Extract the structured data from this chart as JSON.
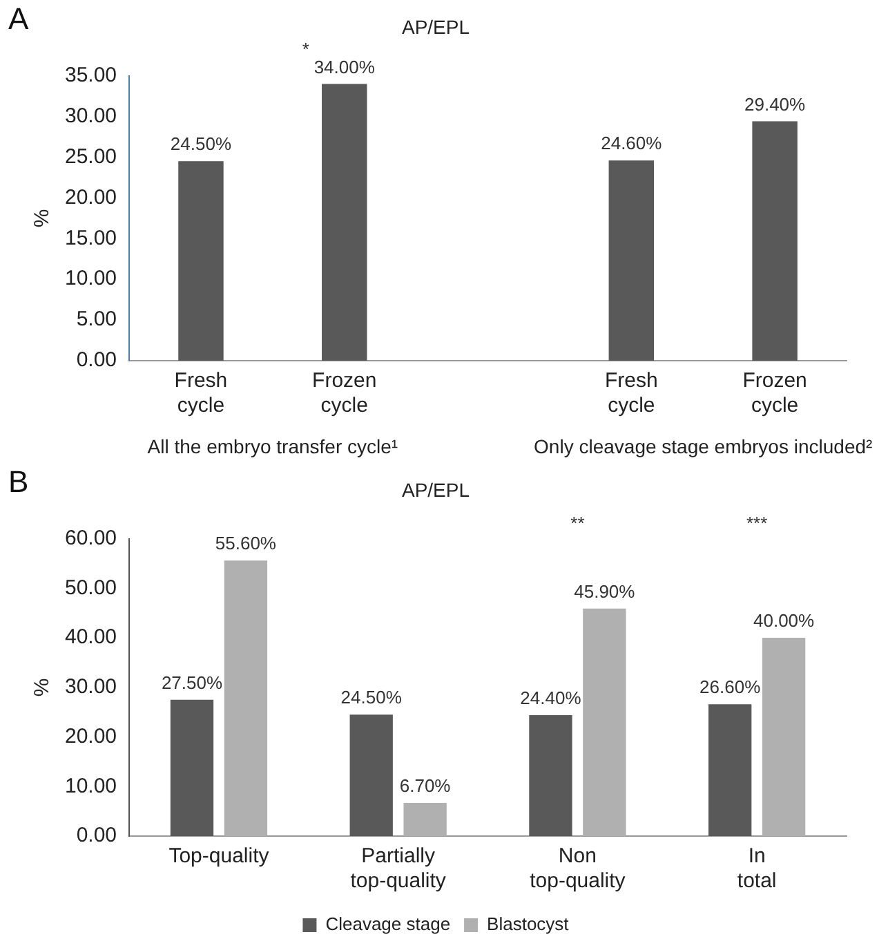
{
  "chart_data": [
    {
      "type": "bar",
      "title": "AP/EPL",
      "ylabel": "%",
      "categories": [
        "Fresh cycle",
        "Frozen cycle",
        null,
        "Fresh cycle",
        "Frozen cycle"
      ],
      "values": [
        24.5,
        34.0,
        null,
        24.6,
        29.4
      ],
      "color": "#595959",
      "value_labels": [
        "24.50%",
        "34.00%",
        null,
        "24.60%",
        "29.40%"
      ],
      "ylim": [
        0,
        35
      ],
      "yticks": [
        {
          "value": 0,
          "label": "0.00"
        },
        {
          "value": 5,
          "label": "5.00"
        },
        {
          "value": 10,
          "label": "10.00"
        },
        {
          "value": 15,
          "label": "15.00"
        },
        {
          "value": 20,
          "label": "20.00"
        },
        {
          "value": 25,
          "label": "25.00"
        },
        {
          "value": 30,
          "label": "30.00"
        },
        {
          "value": 35,
          "label": "35.00"
        }
      ],
      "grid": false,
      "legend": false,
      "annotations": [
        "A",
        "All the embryo transfer cycle¹",
        "Only cleavage stage embryos included²",
        "*"
      ]
    },
    {
      "type": "bar",
      "title": "AP/EPL",
      "ylabel": "%",
      "categories": [
        "Top-quality",
        "Partially top-quality",
        "Non top-quality",
        "In total"
      ],
      "series": [
        {
          "name": "Cleavage stage",
          "color": "#595959",
          "values": [
            27.5,
            24.5,
            24.4,
            26.6
          ],
          "value_labels": [
            "27.50%",
            "24.50%",
            "24.40%",
            "26.60%"
          ]
        },
        {
          "name": "Blastocyst",
          "color": "#b0b0b0",
          "values": [
            55.6,
            6.7,
            45.9,
            40.0
          ],
          "value_labels": [
            "55.60%",
            "6.70%",
            "45.90%",
            "40.00%"
          ]
        }
      ],
      "ylim": [
        0,
        60
      ],
      "yticks": [
        {
          "value": 0,
          "label": "0.00"
        },
        {
          "value": 10,
          "label": "10.00"
        },
        {
          "value": 20,
          "label": "20.00"
        },
        {
          "value": 30,
          "label": "30.00"
        },
        {
          "value": 40,
          "label": "40.00"
        },
        {
          "value": 50,
          "label": "50.00"
        },
        {
          "value": 60,
          "label": "60.00"
        }
      ],
      "grid": false,
      "legend": "bottom",
      "annotations": [
        "B",
        "**",
        "***"
      ]
    }
  ]
}
